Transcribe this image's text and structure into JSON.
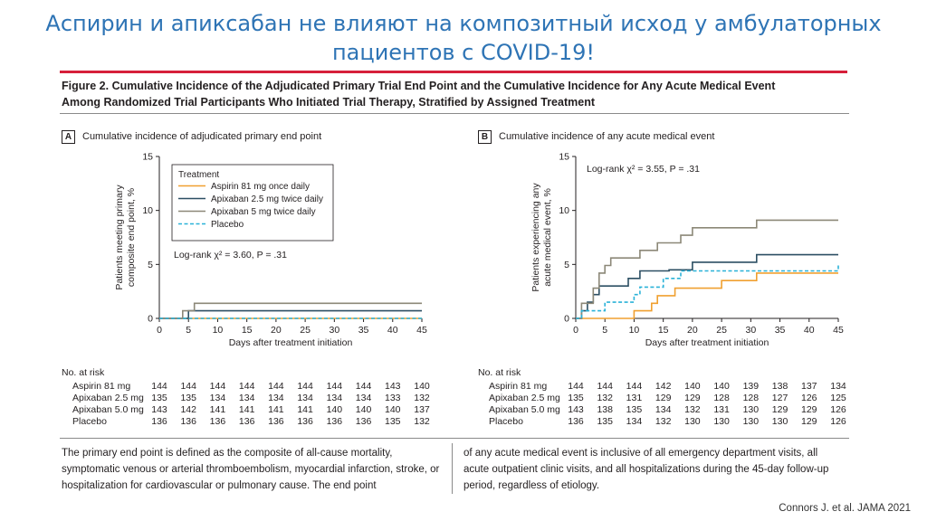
{
  "slide": {
    "title": "Аспирин и апиксабан не влияют на композитный исход у амбулаторных пациентов с COVID-19!",
    "credit": "Connors J. et al. JAMA 2021"
  },
  "figure": {
    "title_line1": "Figure 2. Cumulative Incidence of the Adjudicated Primary Trial End Point and the Cumulative Incidence for Any Acute Medical Event",
    "title_line2": "Among Randomized Trial Participants Who Initiated Trial Therapy, Stratified by Assigned Treatment",
    "caption_left": "The primary end point is defined as the composite of all-cause mortality, symptomatic venous or arterial thromboembolism, myocardial infarction, stroke, or hospitalization for cardiovascular or pulmonary cause. The end point",
    "caption_right": "of any acute medical event is inclusive of all emergency department visits, all acute outpatient clinic visits, and all hospitalizations during the 45-day follow-up period, regardless of etiology."
  },
  "colors": {
    "aspirin": "#f0a030",
    "apixaban25": "#2c4f63",
    "apixaban5": "#8c8878",
    "placebo": "#2ab2d8"
  },
  "chart_data": [
    {
      "type": "line",
      "letter": "A",
      "title": "Cumulative incidence of adjudicated primary end point",
      "xlabel": "Days after treatment initiation",
      "ylabel_line1": "Patients meeting primary",
      "ylabel_line2": "composite end point, %",
      "xlim": [
        0,
        45
      ],
      "ylim": [
        0,
        15
      ],
      "xticks": [
        0,
        5,
        10,
        15,
        20,
        25,
        30,
        35,
        40,
        45
      ],
      "yticks": [
        0,
        5,
        10,
        15
      ],
      "grid": false,
      "step": true,
      "legend": {
        "title": "Treatment",
        "placement": "top-left",
        "entries": [
          "Aspirin 81 mg once daily",
          "Apixaban 2.5 mg twice daily",
          "Apixaban 5 mg twice daily",
          "Placebo"
        ]
      },
      "annotation": "Log-rank χ² = 3.60, P = .31",
      "series": [
        {
          "key": "aspirin",
          "dashed": false,
          "points": [
            [
              0,
              0
            ],
            [
              45,
              0
            ]
          ]
        },
        {
          "key": "apixaban25",
          "dashed": false,
          "points": [
            [
              0,
              0
            ],
            [
              5,
              0.7
            ],
            [
              45,
              0.7
            ]
          ]
        },
        {
          "key": "apixaban5",
          "dashed": false,
          "points": [
            [
              0,
              0
            ],
            [
              4,
              0.7
            ],
            [
              6,
              1.4
            ],
            [
              45,
              1.4
            ]
          ]
        },
        {
          "key": "placebo",
          "dashed": true,
          "points": [
            [
              0,
              0
            ],
            [
              45,
              0
            ]
          ]
        }
      ],
      "risk_table": {
        "header": "No. at risk",
        "rows": [
          {
            "label": "Aspirin 81 mg",
            "values": [
              144,
              144,
              144,
              144,
              144,
              144,
              144,
              144,
              143,
              140
            ]
          },
          {
            "label": "Apixaban 2.5 mg",
            "values": [
              135,
              135,
              134,
              134,
              134,
              134,
              134,
              134,
              133,
              132
            ]
          },
          {
            "label": "Apixaban 5.0 mg",
            "values": [
              143,
              142,
              141,
              141,
              141,
              141,
              140,
              140,
              140,
              137
            ]
          },
          {
            "label": "Placebo",
            "values": [
              136,
              136,
              136,
              136,
              136,
              136,
              136,
              136,
              135,
              132
            ]
          }
        ]
      }
    },
    {
      "type": "line",
      "letter": "B",
      "title": "Cumulative incidence of any acute medical event",
      "xlabel": "Days after treatment initiation",
      "ylabel_line1": "Patients experiencing any",
      "ylabel_line2": "acute medical event, %",
      "xlim": [
        0,
        45
      ],
      "ylim": [
        0,
        15
      ],
      "xticks": [
        0,
        5,
        10,
        15,
        20,
        25,
        30,
        35,
        40,
        45
      ],
      "yticks": [
        0,
        5,
        10,
        15
      ],
      "grid": false,
      "step": true,
      "annotation": "Log-rank χ² = 3.55, P = .31",
      "series": [
        {
          "key": "aspirin",
          "dashed": false,
          "points": [
            [
              0,
              0
            ],
            [
              10,
              0.7
            ],
            [
              13,
              1.4
            ],
            [
              14,
              2.1
            ],
            [
              17,
              2.8
            ],
            [
              25,
              3.5
            ],
            [
              31,
              4.2
            ],
            [
              45,
              4.2
            ]
          ]
        },
        {
          "key": "apixaban25",
          "dashed": false,
          "points": [
            [
              0,
              0
            ],
            [
              1,
              0.7
            ],
            [
              2,
              1.5
            ],
            [
              3,
              2.2
            ],
            [
              4,
              3.0
            ],
            [
              9,
              3.7
            ],
            [
              11,
              4.4
            ],
            [
              16,
              4.5
            ],
            [
              20,
              5.2
            ],
            [
              31,
              5.9
            ],
            [
              45,
              5.9
            ]
          ]
        },
        {
          "key": "apixaban5",
          "dashed": false,
          "points": [
            [
              0,
              0
            ],
            [
              1,
              1.4
            ],
            [
              3,
              2.8
            ],
            [
              4,
              4.2
            ],
            [
              5,
              4.9
            ],
            [
              6,
              5.6
            ],
            [
              11,
              6.3
            ],
            [
              14,
              7.0
            ],
            [
              18,
              7.7
            ],
            [
              20,
              8.4
            ],
            [
              31,
              9.1
            ],
            [
              45,
              9.1
            ]
          ]
        },
        {
          "key": "placebo",
          "dashed": true,
          "points": [
            [
              0,
              0
            ],
            [
              1,
              0.7
            ],
            [
              5,
              1.5
            ],
            [
              10,
              2.2
            ],
            [
              11,
              2.9
            ],
            [
              15,
              3.7
            ],
            [
              18,
              4.4
            ],
            [
              45,
              4.4
            ],
            [
              45,
              5.1
            ]
          ]
        }
      ],
      "risk_table": {
        "header": "No. at risk",
        "rows": [
          {
            "label": "Aspirin 81 mg",
            "values": [
              144,
              144,
              144,
              142,
              140,
              140,
              139,
              138,
              137,
              134
            ]
          },
          {
            "label": "Apixaban 2.5 mg",
            "values": [
              135,
              132,
              131,
              129,
              129,
              128,
              128,
              127,
              126,
              125
            ]
          },
          {
            "label": "Apixaban 5.0 mg",
            "values": [
              143,
              138,
              135,
              134,
              132,
              131,
              130,
              129,
              129,
              126
            ]
          },
          {
            "label": "Placebo",
            "values": [
              136,
              135,
              134,
              132,
              130,
              130,
              130,
              130,
              129,
              126
            ]
          }
        ]
      }
    }
  ]
}
